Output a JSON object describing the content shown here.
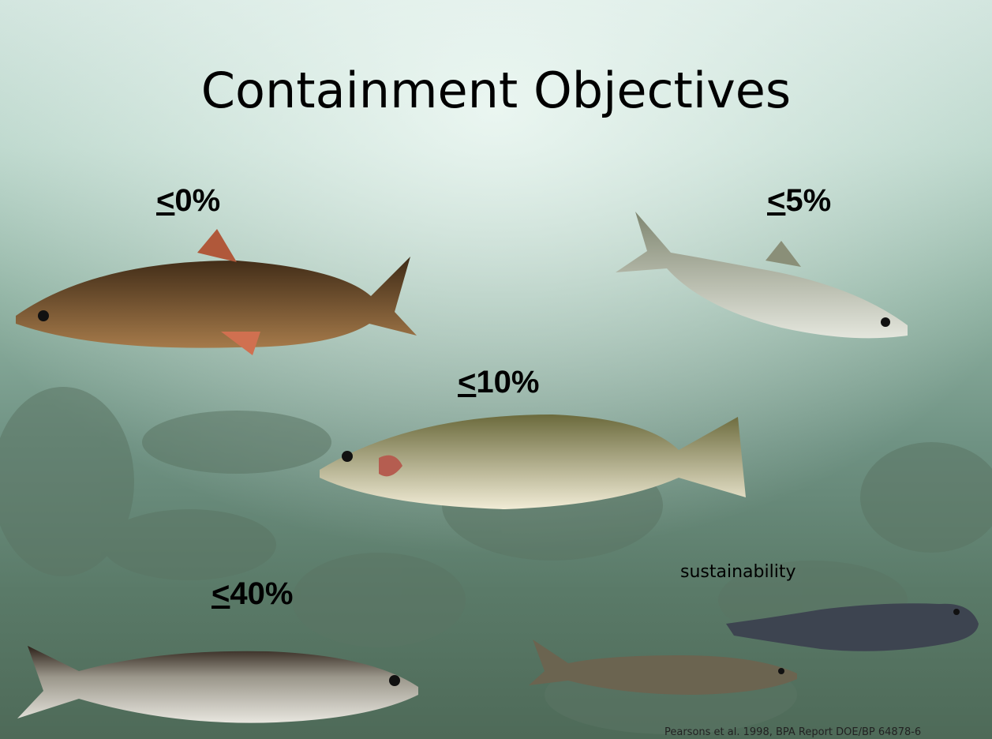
{
  "title": "Containment Objectives",
  "objectives": [
    "<0%",
    "<5%",
    "<10%",
    "<40%"
  ],
  "sustainability": "sustainability",
  "citation": "Pearsons et al. 1998, BPA Report DOE/BP 64878-6"
}
